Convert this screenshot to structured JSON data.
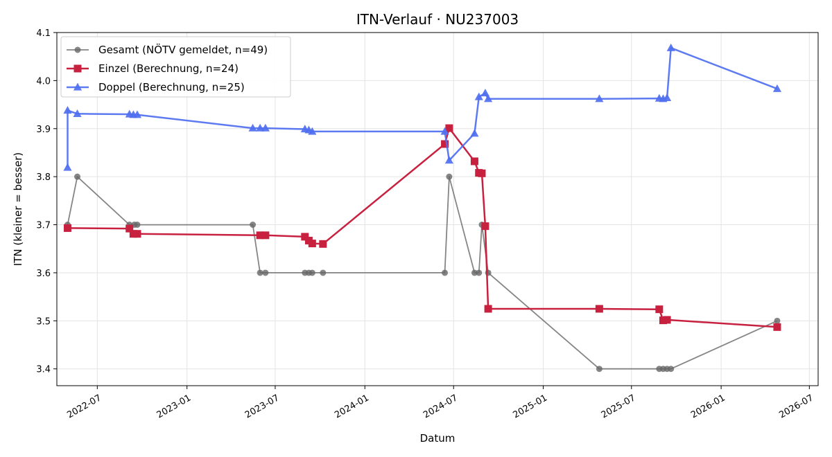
{
  "chart_data": {
    "type": "line",
    "title": "ITN-Verlauf · NU237003",
    "xlabel": "Datum",
    "ylabel": "ITN  (kleiner = besser)",
    "x_ticks": [
      "2022-07",
      "2023-01",
      "2023-07",
      "2024-01",
      "2024-07",
      "2025-01",
      "2025-07",
      "2026-01",
      "2026-07"
    ],
    "y_ticks": [
      "3.4",
      "3.5",
      "3.6",
      "3.7",
      "3.8",
      "3.9",
      "4.0",
      "4.1"
    ],
    "xlim": [
      "2022-04-09",
      "2026-07-19"
    ],
    "ylim": [
      3.365,
      4.1
    ],
    "grid": true,
    "legend_position": "top-left",
    "series": [
      {
        "name": "Gesamt (NÖTV gemeldet, n=49)",
        "color": "#666666",
        "marker": "circle",
        "points": [
          {
            "x": "2022-05-01",
            "y": 3.7
          },
          {
            "x": "2022-05-21",
            "y": 3.8
          },
          {
            "x": "2022-09-05",
            "y": 3.7
          },
          {
            "x": "2022-09-15",
            "y": 3.7
          },
          {
            "x": "2022-09-21",
            "y": 3.7
          },
          {
            "x": "2023-05-16",
            "y": 3.7
          },
          {
            "x": "2023-05-31",
            "y": 3.6
          },
          {
            "x": "2023-06-11",
            "y": 3.6
          },
          {
            "x": "2023-08-31",
            "y": 3.6
          },
          {
            "x": "2023-09-08",
            "y": 3.6
          },
          {
            "x": "2023-09-15",
            "y": 3.6
          },
          {
            "x": "2023-10-07",
            "y": 3.6
          },
          {
            "x": "2024-06-13",
            "y": 3.6
          },
          {
            "x": "2024-06-22",
            "y": 3.8
          },
          {
            "x": "2024-08-13",
            "y": 3.6
          },
          {
            "x": "2024-08-22",
            "y": 3.6
          },
          {
            "x": "2024-08-28",
            "y": 3.7
          },
          {
            "x": "2024-09-10",
            "y": 3.6
          },
          {
            "x": "2025-04-26",
            "y": 3.4
          },
          {
            "x": "2025-08-27",
            "y": 3.4
          },
          {
            "x": "2025-09-04",
            "y": 3.4
          },
          {
            "x": "2025-09-12",
            "y": 3.4
          },
          {
            "x": "2025-09-20",
            "y": 3.4
          },
          {
            "x": "2026-04-26",
            "y": 3.5
          }
        ]
      },
      {
        "name": "Einzel (Berechnung, n=24)",
        "color": "#c8203f",
        "marker": "square",
        "points": [
          {
            "x": "2022-05-01",
            "y": 3.693
          },
          {
            "x": "2022-09-05",
            "y": 3.692
          },
          {
            "x": "2022-09-13",
            "y": 3.681
          },
          {
            "x": "2022-09-21",
            "y": 3.681
          },
          {
            "x": "2023-05-31",
            "y": 3.678
          },
          {
            "x": "2023-06-11",
            "y": 3.678
          },
          {
            "x": "2023-08-31",
            "y": 3.675
          },
          {
            "x": "2023-09-08",
            "y": 3.667
          },
          {
            "x": "2023-09-15",
            "y": 3.661
          },
          {
            "x": "2023-10-07",
            "y": 3.66
          },
          {
            "x": "2024-06-13",
            "y": 3.868
          },
          {
            "x": "2024-06-22",
            "y": 3.901
          },
          {
            "x": "2024-08-13",
            "y": 3.832
          },
          {
            "x": "2024-08-22",
            "y": 3.808
          },
          {
            "x": "2024-08-28",
            "y": 3.807
          },
          {
            "x": "2024-09-04",
            "y": 3.697
          },
          {
            "x": "2024-09-10",
            "y": 3.525
          },
          {
            "x": "2025-04-26",
            "y": 3.525
          },
          {
            "x": "2025-08-27",
            "y": 3.524
          },
          {
            "x": "2025-09-04",
            "y": 3.501
          },
          {
            "x": "2025-09-12",
            "y": 3.502
          },
          {
            "x": "2026-04-26",
            "y": 3.487
          }
        ]
      },
      {
        "name": "Doppel (Berechnung, n=25)",
        "color": "#4f6ff0",
        "marker": "triangle",
        "points": [
          {
            "x": "2022-05-01",
            "y": 3.819
          },
          {
            "x": "2022-05-01",
            "y": 3.938
          },
          {
            "x": "2022-05-21",
            "y": 3.931
          },
          {
            "x": "2022-09-05",
            "y": 3.93
          },
          {
            "x": "2022-09-13",
            "y": 3.929
          },
          {
            "x": "2022-09-21",
            "y": 3.929
          },
          {
            "x": "2023-05-16",
            "y": 3.901
          },
          {
            "x": "2023-05-31",
            "y": 3.901
          },
          {
            "x": "2023-06-11",
            "y": 3.901
          },
          {
            "x": "2023-08-31",
            "y": 3.899
          },
          {
            "x": "2023-09-08",
            "y": 3.897
          },
          {
            "x": "2023-09-15",
            "y": 3.894
          },
          {
            "x": "2024-06-13",
            "y": 3.894
          },
          {
            "x": "2024-06-22",
            "y": 3.834
          },
          {
            "x": "2024-08-13",
            "y": 3.89
          },
          {
            "x": "2024-08-22",
            "y": 3.966
          },
          {
            "x": "2024-09-04",
            "y": 3.974
          },
          {
            "x": "2024-09-10",
            "y": 3.962
          },
          {
            "x": "2025-04-26",
            "y": 3.962
          },
          {
            "x": "2025-08-27",
            "y": 3.963
          },
          {
            "x": "2025-09-04",
            "y": 3.962
          },
          {
            "x": "2025-09-12",
            "y": 3.964
          },
          {
            "x": "2025-09-20",
            "y": 4.068
          },
          {
            "x": "2026-04-26",
            "y": 3.983
          }
        ]
      }
    ]
  }
}
